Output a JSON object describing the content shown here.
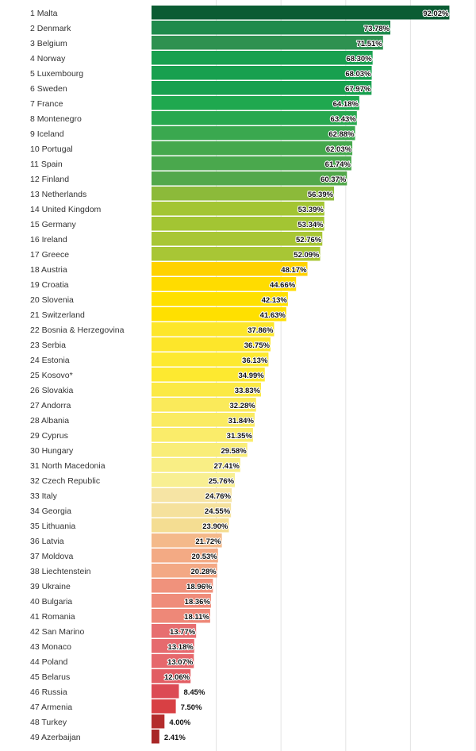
{
  "chart_data": {
    "type": "bar",
    "orientation": "horizontal",
    "title": "",
    "xlabel": "",
    "ylabel": "",
    "xlim": [
      0,
      100
    ],
    "grid": true,
    "unit": "%",
    "categories": [
      "1 Malta",
      "2 Denmark",
      "3 Belgium",
      "4 Norway",
      "5 Luxembourg",
      "6 Sweden",
      "7 France",
      "8 Montenegro",
      "9 Iceland",
      "10 Portugal",
      "11 Spain",
      "12 Finland",
      "13 Netherlands",
      "14 United Kingdom",
      "15 Germany",
      "16 Ireland",
      "17 Greece",
      "18 Austria",
      "19 Croatia",
      "20 Slovenia",
      "21 Switzerland",
      "22 Bosnia & Herzegovina",
      "23 Serbia",
      "24 Estonia",
      "25 Kosovo*",
      "26 Slovakia",
      "27 Andorra",
      "28 Albania",
      "29 Cyprus",
      "30 Hungary",
      "31 North Macedonia",
      "32 Czech Republic",
      "33 Italy",
      "34 Georgia",
      "35 Lithuania",
      "36 Latvia",
      "37 Moldova",
      "38 Liechtenstein",
      "39 Ukraine",
      "40 Bulgaria",
      "41 Romania",
      "42 San Marino",
      "43 Monaco",
      "44 Poland",
      "45 Belarus",
      "46 Russia",
      "47 Armenia",
      "48 Turkey",
      "49 Azerbaijan"
    ],
    "values": [
      92.02,
      73.78,
      71.51,
      68.3,
      68.03,
      67.97,
      64.18,
      63.43,
      62.88,
      62.03,
      61.74,
      60.37,
      56.39,
      53.39,
      53.34,
      52.76,
      52.09,
      48.17,
      44.66,
      42.13,
      41.63,
      37.86,
      36.75,
      36.13,
      34.99,
      33.83,
      32.28,
      31.84,
      31.35,
      29.58,
      27.41,
      25.76,
      24.76,
      24.55,
      23.9,
      21.72,
      20.53,
      20.28,
      18.96,
      18.36,
      18.11,
      13.77,
      13.18,
      13.07,
      12.06,
      8.45,
      7.5,
      4.0,
      2.41
    ],
    "value_labels": [
      "92.02%",
      "73.78%",
      "71.51%",
      "68.30%",
      "68.03%",
      "67.97%",
      "64.18%",
      "63.43%",
      "62.88%",
      "62.03%",
      "61.74%",
      "60.37%",
      "56.39%",
      "53.39%",
      "53.34%",
      "52.76%",
      "52.09%",
      "48.17%",
      "44.66%",
      "42.13%",
      "41.63%",
      "37.86%",
      "36.75%",
      "36.13%",
      "34.99%",
      "33.83%",
      "32.28%",
      "31.84%",
      "31.35%",
      "29.58%",
      "27.41%",
      "25.76%",
      "24.76%",
      "24.55%",
      "23.90%",
      "21.72%",
      "20.53%",
      "20.28%",
      "18.96%",
      "18.36%",
      "18.11%",
      "13.77%",
      "13.18%",
      "13.07%",
      "12.06%",
      "8.45%",
      "7.50%",
      "4.00%",
      "2.41%"
    ],
    "colors": [
      "#0b5c33",
      "#1f8a4c",
      "#2e9150",
      "#18a04f",
      "#18a04f",
      "#18a04f",
      "#1fa84f",
      "#28a84f",
      "#3aa84f",
      "#45a84d",
      "#4aa84d",
      "#52a84b",
      "#8cba3a",
      "#a3c533",
      "#a3c533",
      "#a8c635",
      "#a8c635",
      "#ffd200",
      "#ffdc00",
      "#ffe000",
      "#ffe000",
      "#fde62a",
      "#fde62a",
      "#fde930",
      "#fde930",
      "#fbe944",
      "#faea5a",
      "#faeb62",
      "#faec6a",
      "#f9ed78",
      "#f9ee85",
      "#f8ef92",
      "#f6e4a4",
      "#f5e19c",
      "#f4dd92",
      "#f4b98a",
      "#f3aa84",
      "#f3a884",
      "#f0927c",
      "#ef8c7a",
      "#ee8878",
      "#e76e70",
      "#e66a6e",
      "#e6686c",
      "#e25d63",
      "#dc4a54",
      "#d84044",
      "#b42c2c",
      "#a82626"
    ]
  }
}
